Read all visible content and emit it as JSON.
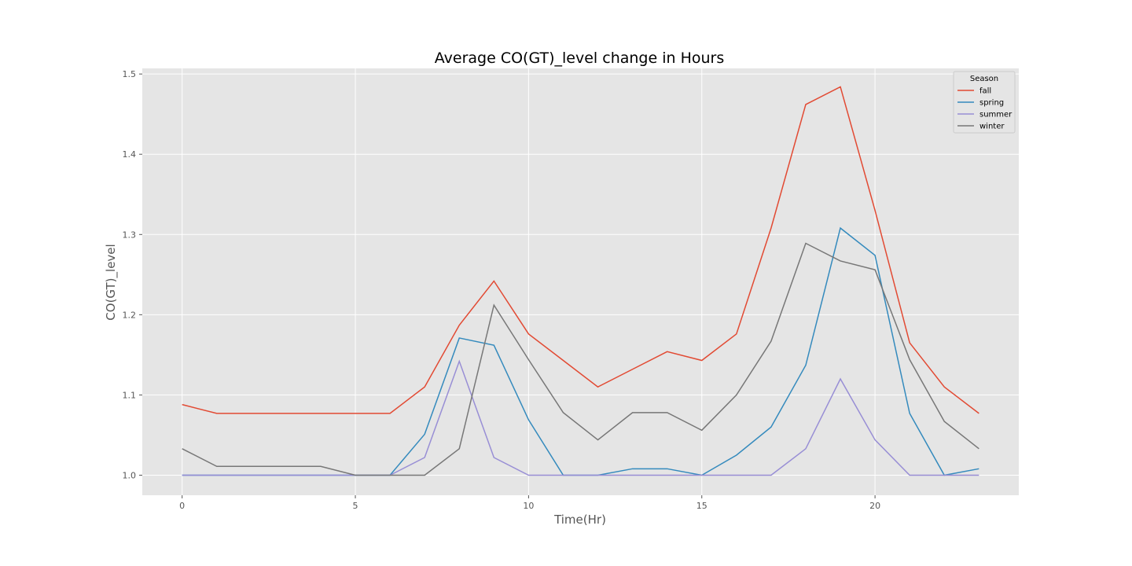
{
  "chart_data": {
    "type": "line",
    "title": "Average CO(GT)_level change in Hours",
    "xlabel": "Time(Hr)",
    "ylabel": "CO(GT)_level",
    "xlim": [
      -1.15,
      24.15
    ],
    "ylim": [
      0.975,
      1.507
    ],
    "xticks": [
      0,
      5,
      10,
      15,
      20
    ],
    "xtick_labels": [
      "0",
      "5",
      "10",
      "15",
      "20"
    ],
    "yticks": [
      1.0,
      1.1,
      1.2,
      1.3,
      1.4,
      1.5
    ],
    "ytick_labels": [
      "1.0",
      "1.1",
      "1.2",
      "1.3",
      "1.4",
      "1.5"
    ],
    "grid": true,
    "legend": {
      "title": "Season",
      "placement": "top-right"
    },
    "x": [
      0,
      1,
      2,
      3,
      4,
      5,
      6,
      7,
      8,
      9,
      10,
      11,
      12,
      13,
      14,
      15,
      16,
      17,
      18,
      19,
      20,
      21,
      22,
      23
    ],
    "series": [
      {
        "name": "fall",
        "color": "#E24A33",
        "values": [
          1.088,
          1.077,
          1.077,
          1.077,
          1.077,
          1.077,
          1.077,
          1.11,
          1.187,
          1.242,
          1.176,
          1.143,
          1.11,
          1.132,
          1.154,
          1.143,
          1.176,
          1.308,
          1.462,
          1.484,
          1.33,
          1.165,
          1.11,
          1.077
        ]
      },
      {
        "name": "spring",
        "color": "#348ABD",
        "values": [
          1.0,
          1.0,
          1.0,
          1.0,
          1.0,
          1.0,
          1.0,
          1.051,
          1.171,
          1.162,
          1.069,
          1.0,
          1.0,
          1.008,
          1.008,
          1.0,
          1.025,
          1.06,
          1.137,
          1.308,
          1.274,
          1.077,
          1.0,
          1.008
        ]
      },
      {
        "name": "summer",
        "color": "#988ED5",
        "values": [
          1.0,
          1.0,
          1.0,
          1.0,
          1.0,
          1.0,
          1.0,
          1.022,
          1.142,
          1.022,
          1.0,
          1.0,
          1.0,
          1.0,
          1.0,
          1.0,
          1.0,
          1.0,
          1.033,
          1.12,
          1.044,
          1.0,
          1.0,
          1.0
        ]
      },
      {
        "name": "winter",
        "color": "#777777",
        "values": [
          1.033,
          1.011,
          1.011,
          1.011,
          1.011,
          1.0,
          1.0,
          1.0,
          1.033,
          1.212,
          1.144,
          1.078,
          1.044,
          1.078,
          1.078,
          1.056,
          1.1,
          1.167,
          1.289,
          1.267,
          1.256,
          1.144,
          1.067,
          1.033
        ]
      }
    ]
  }
}
